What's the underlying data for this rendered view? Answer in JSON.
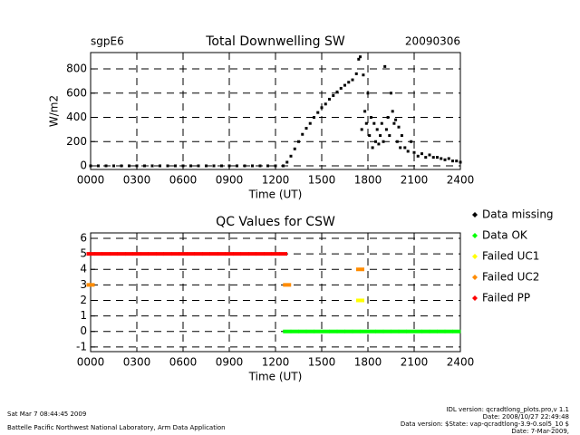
{
  "chart_data": [
    {
      "type": "scatter",
      "title": "Total Downwelling SW",
      "subtitle_left": "sgpE6",
      "subtitle_right": "20090306",
      "ylabel": "W/m2",
      "xlabel": "Time (UT)",
      "color": "#000000",
      "x": [
        0,
        0.5,
        1,
        1.5,
        2,
        2.5,
        3,
        3.5,
        4,
        4.5,
        5,
        5.5,
        6,
        6.5,
        7,
        7.5,
        8,
        8.5,
        9,
        9.5,
        10,
        10.5,
        11,
        11.5,
        12,
        12.5,
        12.75,
        13,
        13.25,
        13.5,
        13.75,
        14,
        14.25,
        14.5,
        14.75,
        15,
        15.25,
        15.5,
        15.75,
        16,
        16.25,
        16.5,
        16.75,
        17,
        17.25,
        17.4,
        17.5,
        17.6,
        17.7,
        17.8,
        17.9,
        18,
        18.1,
        18.2,
        18.3,
        18.4,
        18.5,
        18.6,
        18.7,
        18.8,
        18.9,
        19,
        19.1,
        19.2,
        19.3,
        19.4,
        19.5,
        19.6,
        19.7,
        19.8,
        19.9,
        20,
        20.1,
        20.2,
        20.4,
        20.6,
        20.8,
        21,
        21.25,
        21.5,
        21.75,
        22,
        22.25,
        22.5,
        22.75,
        23,
        23.25,
        23.5,
        23.75,
        24
      ],
      "values": [
        0,
        0,
        0,
        0,
        0,
        0,
        0,
        0,
        0,
        0,
        0,
        0,
        0,
        0,
        0,
        0,
        0,
        0,
        0,
        0,
        0,
        0,
        0,
        0,
        0,
        0,
        30,
        80,
        140,
        200,
        260,
        310,
        350,
        400,
        440,
        480,
        510,
        550,
        580,
        610,
        640,
        665,
        690,
        710,
        760,
        880,
        900,
        300,
        750,
        450,
        350,
        600,
        250,
        400,
        150,
        350,
        200,
        300,
        180,
        250,
        350,
        200,
        820,
        300,
        400,
        250,
        600,
        450,
        350,
        380,
        200,
        320,
        150,
        250,
        150,
        120,
        200,
        110,
        80,
        100,
        70,
        90,
        70,
        70,
        60,
        50,
        60,
        40,
        40,
        30
      ],
      "xlim": [
        0,
        24
      ],
      "xticks": [
        {
          "value": 0,
          "label": "0000"
        },
        {
          "value": 3,
          "label": "0300"
        },
        {
          "value": 6,
          "label": "0600"
        },
        {
          "value": 9,
          "label": "0900"
        },
        {
          "value": 12,
          "label": "1200"
        },
        {
          "value": 15,
          "label": "1500"
        },
        {
          "value": 18,
          "label": "1800"
        },
        {
          "value": 21,
          "label": "2100"
        },
        {
          "value": 24,
          "label": "2400"
        }
      ],
      "ylim": [
        -30,
        935
      ],
      "yticks": [
        0,
        200,
        400,
        600,
        800
      ],
      "grid": true
    },
    {
      "type": "scatter",
      "title": "QC Values for CSW",
      "xlabel": "Time (UT)",
      "series": [
        {
          "name": "Data missing",
          "color": "#000000",
          "x": [],
          "values": []
        },
        {
          "name": "Data OK",
          "color": "#00ff00",
          "x": [
            12.75,
            13.25,
            13.75,
            14.25,
            14.75,
            15.25,
            15.75,
            16.25,
            16.75,
            17.25,
            17.75,
            18.25,
            18.75,
            19.25,
            19.75,
            20.25,
            20.75,
            21.25,
            21.75,
            22.25,
            22.75,
            23.25,
            23.75
          ],
          "values": [
            0,
            0,
            0,
            0,
            0,
            0,
            0,
            0,
            0,
            0,
            0,
            0,
            0,
            0,
            0,
            0,
            0,
            0,
            0,
            0,
            0,
            0,
            0
          ]
        },
        {
          "name": "Failed UC1",
          "color": "#ffff00",
          "x": [
            17.5
          ],
          "values": [
            2
          ]
        },
        {
          "name": "Failed UC2",
          "color": "#ff8c00",
          "x": [
            0,
            12.75,
            17.5
          ],
          "values": [
            3,
            3,
            4
          ]
        },
        {
          "name": "Failed PP",
          "color": "#ff0000",
          "x": [
            0,
            0.5,
            1,
            1.5,
            2,
            2.5,
            3,
            3.5,
            4,
            4.5,
            5,
            5.5,
            6,
            6.5,
            7,
            7.5,
            8,
            8.5,
            9,
            9.5,
            10,
            10.5,
            11,
            11.5,
            12,
            12.5
          ],
          "values": [
            5,
            5,
            5,
            5,
            5,
            5,
            5,
            5,
            5,
            5,
            5,
            5,
            5,
            5,
            5,
            5,
            5,
            5,
            5,
            5,
            5,
            5,
            5,
            5,
            5,
            5
          ]
        }
      ],
      "xlim": [
        0,
        24
      ],
      "xticks": [
        {
          "value": 0,
          "label": "0000"
        },
        {
          "value": 3,
          "label": "0300"
        },
        {
          "value": 6,
          "label": "0600"
        },
        {
          "value": 9,
          "label": "0900"
        },
        {
          "value": 12,
          "label": "1200"
        },
        {
          "value": 15,
          "label": "1500"
        },
        {
          "value": 18,
          "label": "1800"
        },
        {
          "value": 21,
          "label": "2100"
        },
        {
          "value": 24,
          "label": "2400"
        }
      ],
      "ylim": [
        -1.3,
        6.35
      ],
      "yticks": [
        -1,
        0,
        1,
        2,
        3,
        4,
        5,
        6
      ],
      "grid": true,
      "legend": "right"
    }
  ],
  "footer": {
    "timestamp": "Sat Mar  7 08:44:45 2009",
    "organization": "Battelle Pacific Northwest National Laboratory, Arm Data Application",
    "idl_version": "IDL version: qcradtlong_plots.pro,v 1.1",
    "idl_date": "Date: 2008/10/27 22:49:48",
    "data_version": "Data version: $State: vap-qcradtlong-3.9-0.sol5_10 $",
    "data_date": "Date: 7-Mar-2009,"
  }
}
